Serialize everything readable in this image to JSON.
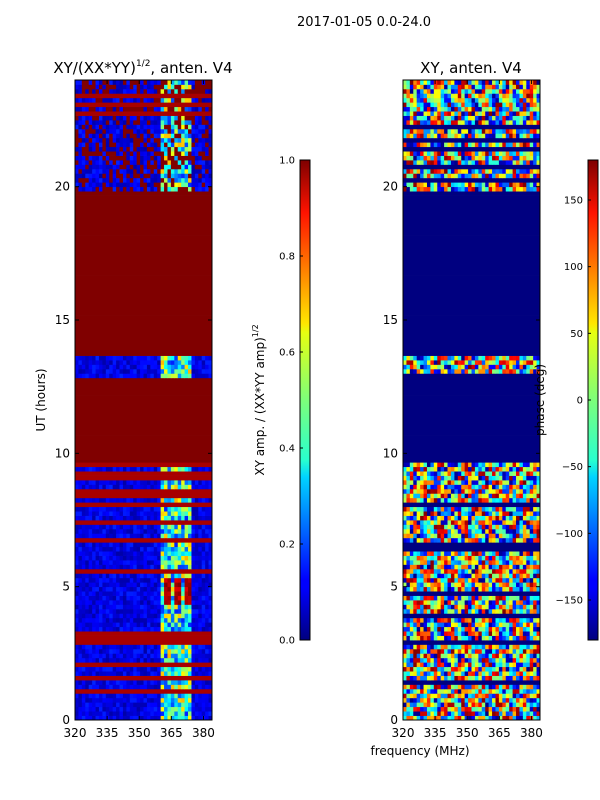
{
  "figure_title": "2017-01-05 0.0-24.0",
  "chart_data": [
    {
      "type": "heatmap",
      "title": "XY/(XX*YY)",
      "title_superscript": "1/2",
      "title_suffix": ", anten. V4",
      "xlabel": "",
      "ylabel": "UT (hours)",
      "xlim": [
        320,
        384
      ],
      "ylim": [
        0,
        24
      ],
      "xticks": [
        "320",
        "335",
        "350",
        "365",
        "380"
      ],
      "xtick_values": [
        320,
        335,
        350,
        365,
        380
      ],
      "yticks": [
        "0",
        "5",
        "10",
        "15",
        "20"
      ],
      "ytick_values": [
        0,
        5,
        10,
        15,
        20
      ],
      "colormap": "jet",
      "colorbar": {
        "label": "XY amp. / (XX*YY amp)",
        "label_superscript": "1/2",
        "range": [
          0.0,
          1.0
        ],
        "ticks": [
          "0.0",
          "0.2",
          "0.4",
          "0.6",
          "0.8",
          "1.0"
        ],
        "tick_values": [
          0.0,
          0.2,
          0.4,
          0.6,
          0.8,
          1.0
        ]
      },
      "regions": [
        {
          "ut": [
            0.0,
            9.7
          ],
          "value": "low amplitude with RFI streaks"
        },
        {
          "ut": [
            9.7,
            12.8
          ],
          "value": 1.0
        },
        {
          "ut": [
            12.8,
            13.7
          ],
          "value": "low amplitude"
        },
        {
          "ut": [
            13.7,
            19.8
          ],
          "value": 1.0
        },
        {
          "ut": [
            19.8,
            24.0
          ],
          "value": "mixed"
        }
      ]
    },
    {
      "type": "heatmap",
      "title": "XY, anten. V4",
      "xlabel": "frequency (MHz)",
      "ylabel": "",
      "xlim": [
        320,
        384
      ],
      "ylim": [
        0,
        24
      ],
      "xticks": [
        "320",
        "335",
        "350",
        "365",
        "380"
      ],
      "xtick_values": [
        320,
        335,
        350,
        365,
        380
      ],
      "yticks": [
        "0",
        "5",
        "10",
        "15",
        "20"
      ],
      "ytick_values": [
        0,
        5,
        10,
        15,
        20
      ],
      "colormap": "jet",
      "colorbar": {
        "label": "phase (deg)",
        "range": [
          -180,
          180
        ],
        "ticks": [
          "−150",
          "−100",
          "−50",
          "0",
          "50",
          "100",
          "150"
        ],
        "tick_values": [
          -150,
          -100,
          -50,
          0,
          50,
          100,
          150
        ]
      },
      "regions": [
        {
          "ut": [
            0.0,
            9.7
          ],
          "value": "mixed phase"
        },
        {
          "ut": [
            9.7,
            12.8
          ],
          "value": -180
        },
        {
          "ut": [
            12.8,
            13.7
          ],
          "value": "mixed phase"
        },
        {
          "ut": [
            13.7,
            19.8
          ],
          "value": -180
        },
        {
          "ut": [
            19.8,
            24.0
          ],
          "value": "mixed phase"
        }
      ]
    }
  ]
}
